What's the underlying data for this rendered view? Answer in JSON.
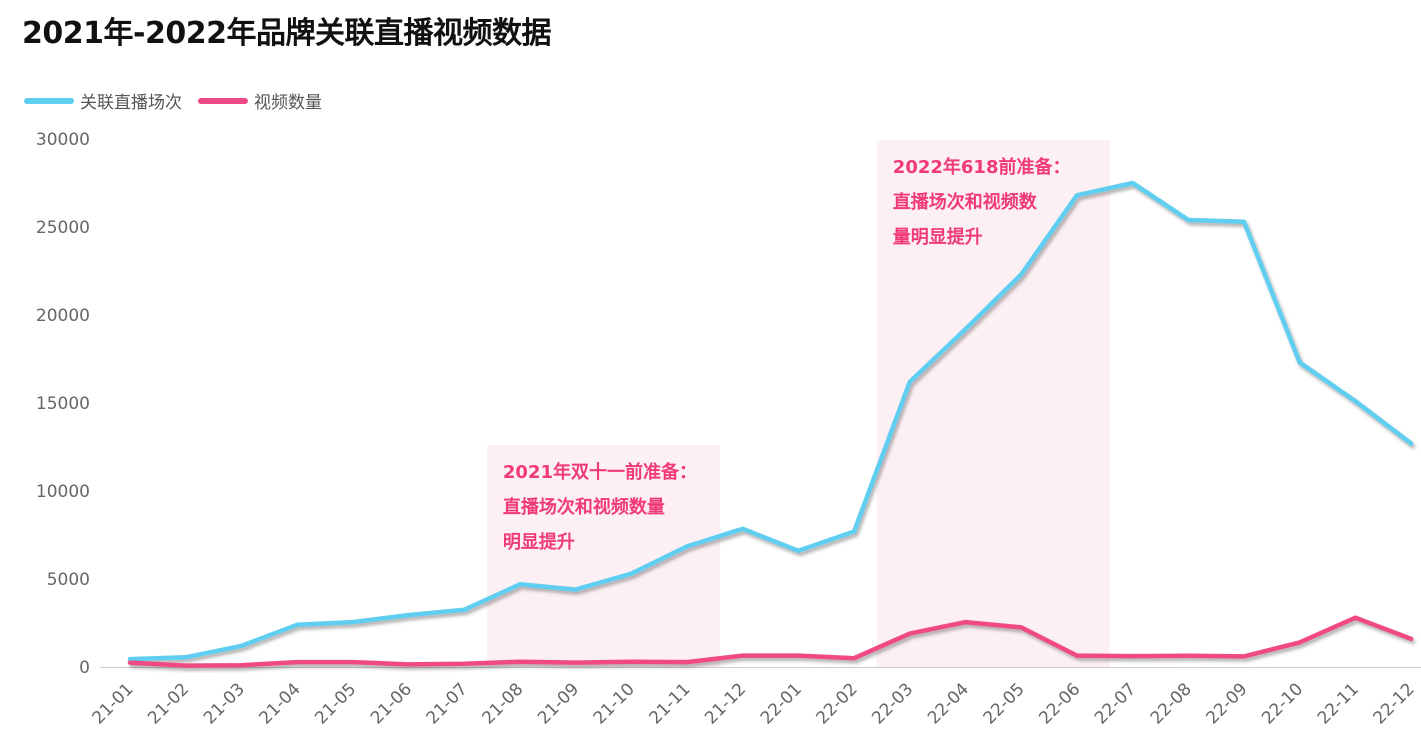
{
  "chart_data": {
    "type": "line",
    "title": "2021年-2022年品牌关联直播视频数据",
    "xlabel": "",
    "ylabel": "",
    "categories": [
      "21-01",
      "21-02",
      "21-03",
      "21-04",
      "21-05",
      "21-06",
      "21-07",
      "21-08",
      "21-09",
      "21-10",
      "21-11",
      "21-12",
      "22-01",
      "22-02",
      "22-03",
      "22-04",
      "22-05",
      "22-06",
      "22-07",
      "22-08",
      "22-09",
      "22-10",
      "22-11",
      "22-12"
    ],
    "ylim": [
      0,
      30000
    ],
    "yticks": [
      "0",
      "5000",
      "10000",
      "15000",
      "20000",
      "25000",
      "30000"
    ],
    "series": [
      {
        "name": "关联直播场次",
        "color": "#5ecef0",
        "values": [
          450,
          550,
          1200,
          2400,
          2550,
          2950,
          3250,
          4700,
          4400,
          5300,
          6850,
          7850,
          6600,
          7700,
          16200,
          19200,
          22300,
          26800,
          27500,
          25400,
          25300,
          17300,
          15100,
          12700
        ]
      },
      {
        "name": "视频数量",
        "color": "#f04a86",
        "values": [
          250,
          80,
          100,
          280,
          280,
          150,
          180,
          300,
          250,
          300,
          280,
          650,
          650,
          500,
          1900,
          2550,
          2250,
          650,
          620,
          640,
          600,
          1400,
          2800,
          1600
        ]
      }
    ],
    "annotations": [
      {
        "lines": [
          "2021年双十一前准备：",
          "直播场次和视频数量",
          "明显提升"
        ],
        "from": "21-08",
        "to": "21-11"
      },
      {
        "lines": [
          "2022年618前准备：",
          "直播场次和视频数",
          "量明显提升"
        ],
        "from": "22-03",
        "to": "22-06"
      }
    ],
    "annotation_color": "#f03a7a",
    "band_color": "#fdf0f4",
    "grid": false,
    "legend_position": "top-left"
  }
}
